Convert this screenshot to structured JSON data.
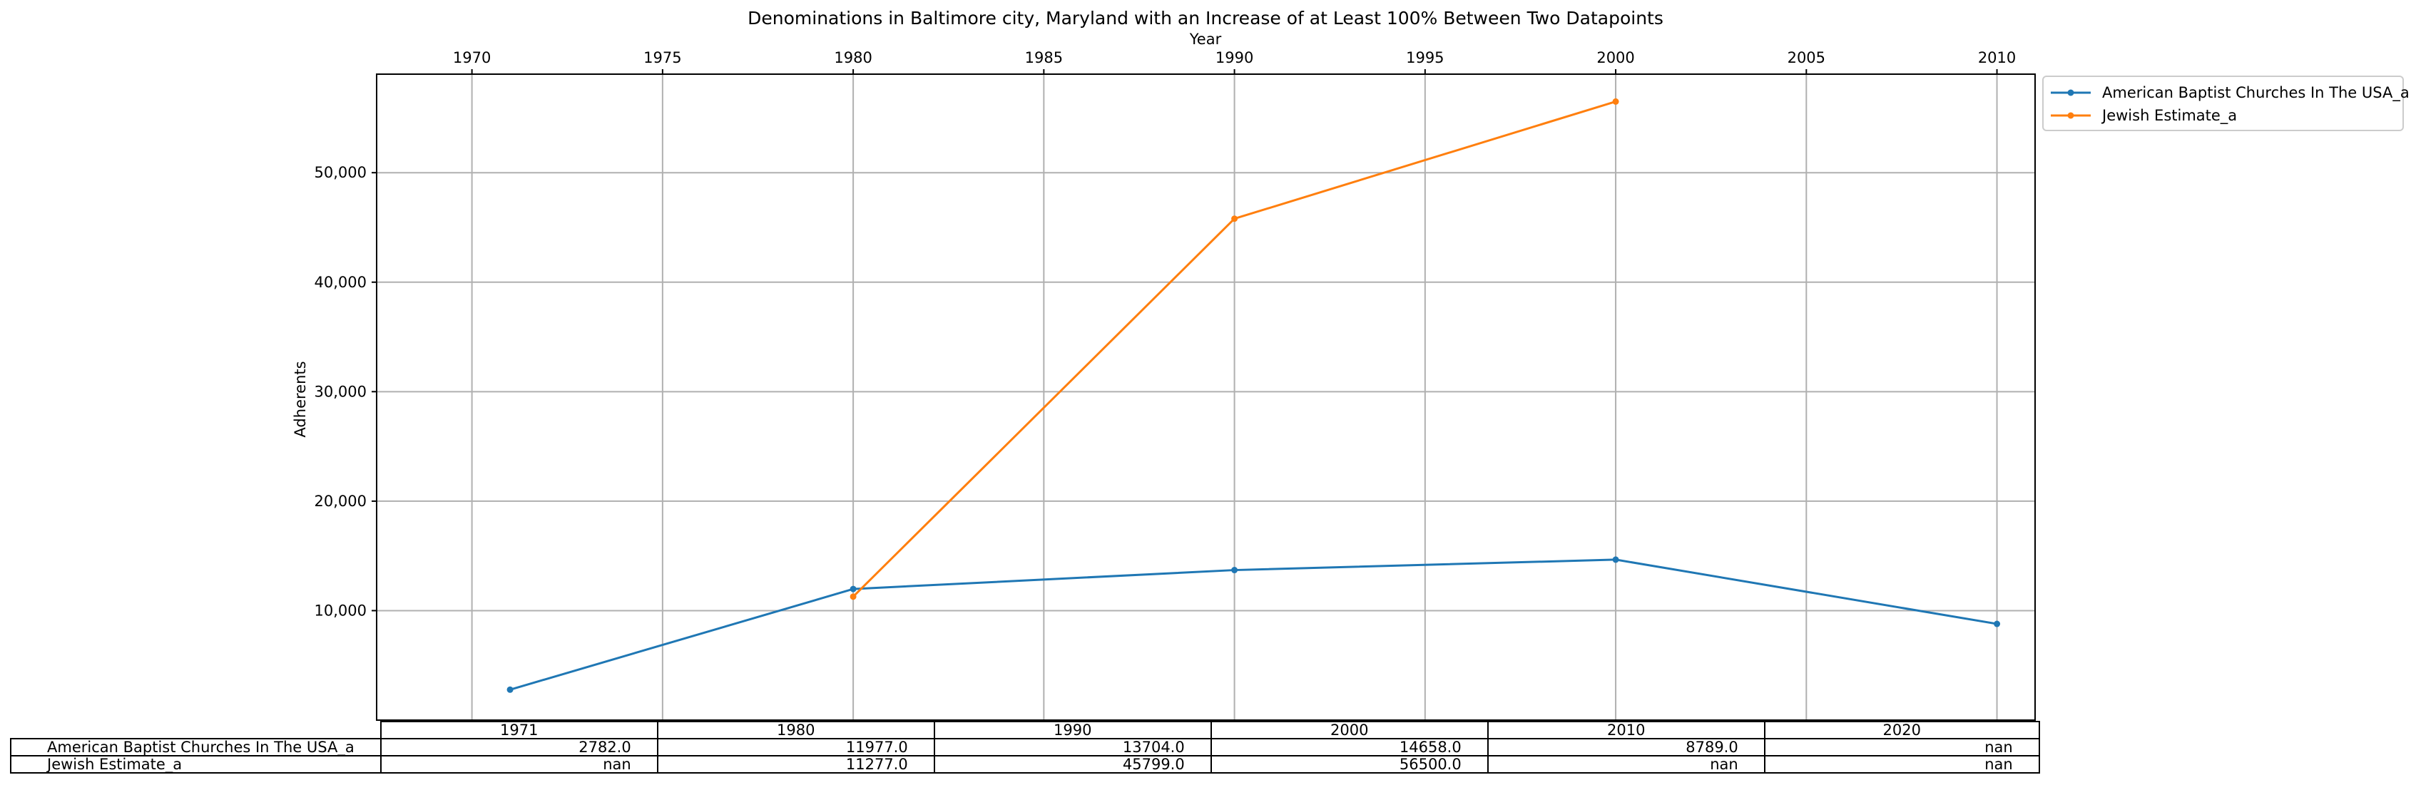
{
  "chart_data": {
    "type": "line",
    "title": "Denominations in Baltimore city, Maryland with an Increase of at Least 100% Between Two Datapoints",
    "xlabel": "Year",
    "ylabel": "Adherents",
    "xlim": [
      1967.5,
      2011
    ],
    "ylim": [
      0,
      59000
    ],
    "x_ticks": [
      1970,
      1975,
      1980,
      1985,
      1990,
      1995,
      2000,
      2005,
      2010
    ],
    "y_ticks": [
      10000,
      20000,
      30000,
      40000,
      50000
    ],
    "y_tick_labels": [
      "10,000",
      "20,000",
      "30,000",
      "40,000",
      "50,000"
    ],
    "x_axis_position": "top",
    "grid": true,
    "legend_position": "outside-top-right",
    "series": [
      {
        "name": "American Baptist Churches In The USA_a",
        "color": "#1f77b4",
        "x": [
          1971,
          1980,
          1990,
          2000,
          2010
        ],
        "y": [
          2782,
          11977,
          13704,
          14658,
          8789
        ]
      },
      {
        "name": "Jewish Estimate_a",
        "color": "#ff7f0e",
        "x": [
          1980,
          1990,
          2000
        ],
        "y": [
          11277,
          45799,
          56500
        ]
      }
    ],
    "table": {
      "columns": [
        "1971",
        "1980",
        "1990",
        "2000",
        "2010",
        "2020"
      ],
      "rows": [
        {
          "label": "American Baptist Churches In The USA_a",
          "values": [
            "2782.0",
            "11977.0",
            "13704.0",
            "14658.0",
            "8789.0",
            "nan"
          ]
        },
        {
          "label": "Jewish Estimate_a",
          "values": [
            "nan",
            "11277.0",
            "45799.0",
            "56500.0",
            "nan",
            "nan"
          ]
        }
      ]
    }
  }
}
